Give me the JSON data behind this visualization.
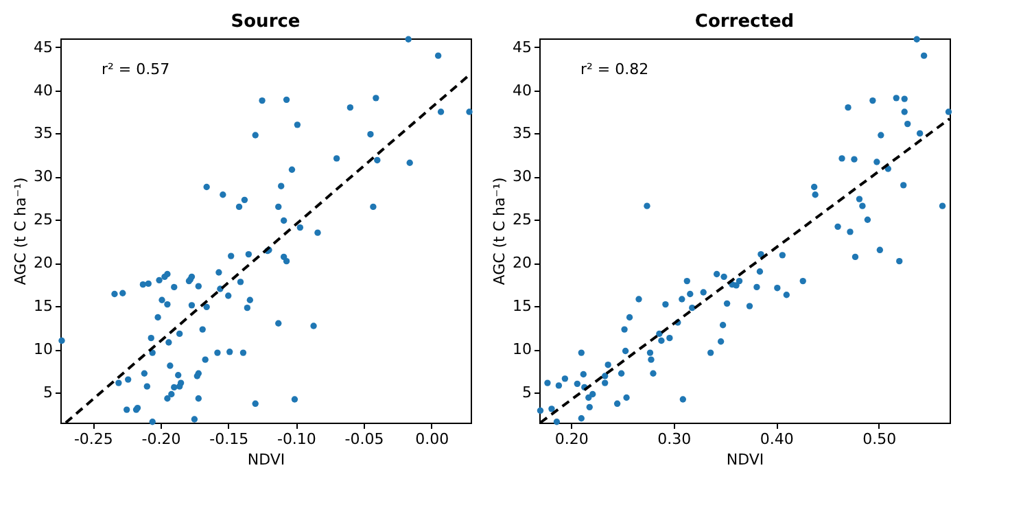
{
  "chart_data": [
    {
      "type": "scatter",
      "title": "Source",
      "xlabel": "NDVI",
      "ylabel": "AGC (t C ha⁻¹)",
      "xlim": [
        -0.274,
        0.029
      ],
      "ylim": [
        1.5,
        46
      ],
      "xticks": [
        {
          "value": -0.25,
          "label": "-0.25"
        },
        {
          "value": -0.2,
          "label": "-0.20"
        },
        {
          "value": -0.15,
          "label": "-0.15"
        },
        {
          "value": -0.1,
          "label": "-0.10"
        },
        {
          "value": -0.05,
          "label": "-0.05"
        },
        {
          "value": 0,
          "label": "0.00"
        }
      ],
      "yticks": [
        5,
        10,
        15,
        20,
        25,
        30,
        35,
        40,
        45
      ],
      "annotations": [
        "r² = 0.57"
      ],
      "grid": false,
      "series": [
        {
          "color": "#1f77b4",
          "marker": "circle",
          "x": [
            -0.273,
            -0.125,
            -0.13,
            -0.166,
            -0.154,
            -0.142,
            -0.138,
            -0.135,
            -0.148,
            -0.121,
            -0.157,
            -0.141,
            -0.134,
            -0.136,
            -0.15,
            -0.156,
            -0.166,
            -0.169,
            -0.167,
            -0.158,
            -0.149,
            -0.139,
            -0.13,
            -0.175,
            -0.172,
            -0.172,
            -0.173,
            -0.177,
            -0.177,
            -0.178,
            -0.172,
            -0.179,
            -0.19,
            -0.195,
            -0.197,
            -0.201,
            -0.199,
            -0.195,
            -0.202,
            -0.186,
            -0.194,
            -0.207,
            -0.206,
            -0.193,
            -0.187,
            -0.185,
            -0.186,
            -0.19,
            -0.192,
            -0.195,
            -0.212,
            -0.21,
            -0.206,
            -0.218,
            -0.217,
            -0.225,
            -0.224,
            -0.231,
            -0.234,
            -0.228,
            -0.213,
            -0.209,
            -0.017,
            0.005,
            0.007,
            0.028,
            -0.107,
            -0.099,
            -0.06,
            -0.041,
            -0.045,
            -0.04,
            -0.016,
            -0.07,
            -0.103,
            -0.111,
            -0.113,
            -0.043,
            -0.109,
            -0.097,
            -0.084,
            -0.12,
            -0.109,
            -0.107,
            -0.113,
            -0.087,
            -0.101
          ],
          "values": [
            11.0,
            38.8,
            34.8,
            28.8,
            27.9,
            26.5,
            27.3,
            21.0,
            20.8,
            21.4,
            18.9,
            17.8,
            15.7,
            14.8,
            16.2,
            17.0,
            14.9,
            12.3,
            8.8,
            9.6,
            9.7,
            9.6,
            3.7,
            1.9,
            4.3,
            7.2,
            6.9,
            15.1,
            18.4,
            18.1,
            17.3,
            17.9,
            17.2,
            18.7,
            18.4,
            18.0,
            15.7,
            15.2,
            13.7,
            11.8,
            10.8,
            11.3,
            9.6,
            8.1,
            7.0,
            6.1,
            5.7,
            5.6,
            4.8,
            4.3,
            7.2,
            5.7,
            1.6,
            3.0,
            3.2,
            3.0,
            6.5,
            6.1,
            16.4,
            16.5,
            17.5,
            17.6,
            45.9,
            44.0,
            37.5,
            37.5,
            38.9,
            36.0,
            38.0,
            39.1,
            34.9,
            31.9,
            31.6,
            32.1,
            30.8,
            28.9,
            26.5,
            26.5,
            24.9,
            24.1,
            23.5,
            21.5,
            20.7,
            20.2,
            13.0,
            12.7,
            4.2
          ]
        },
        {
          "type": "line",
          "color": "#000000",
          "line_style": "dashed",
          "x": [
            -0.27,
            0.029
          ],
          "values": [
            1.5,
            41.9
          ]
        }
      ]
    },
    {
      "type": "scatter",
      "title": "Corrected",
      "xlabel": "NDVI",
      "ylabel": "AGC (t C ha⁻¹)",
      "xlim": [
        0.169,
        0.569
      ],
      "ylim": [
        1.5,
        46
      ],
      "xticks": [
        {
          "value": 0.2,
          "label": "0.20"
        },
        {
          "value": 0.3,
          "label": "0.30"
        },
        {
          "value": 0.4,
          "label": "0.40"
        },
        {
          "value": 0.5,
          "label": "0.50"
        }
      ],
      "yticks": [
        5,
        10,
        15,
        20,
        25,
        30,
        35,
        40,
        45
      ],
      "annotations": [
        "r² = 0.82"
      ],
      "grid": false,
      "series": [
        {
          "color": "#1f77b4",
          "marker": "circle",
          "x": [
            0.17,
            0.181,
            0.186,
            0.177,
            0.188,
            0.194,
            0.206,
            0.21,
            0.212,
            0.213,
            0.217,
            0.218,
            0.221,
            0.21,
            0.233,
            0.233,
            0.236,
            0.249,
            0.245,
            0.254,
            0.253,
            0.252,
            0.257,
            0.266,
            0.274,
            0.277,
            0.278,
            0.28,
            0.286,
            0.288,
            0.292,
            0.296,
            0.304,
            0.308,
            0.309,
            0.313,
            0.316,
            0.318,
            0.329,
            0.336,
            0.342,
            0.349,
            0.346,
            0.348,
            0.352,
            0.357,
            0.361,
            0.364,
            0.374,
            0.381,
            0.384,
            0.385,
            0.401,
            0.406,
            0.41,
            0.426,
            0.437,
            0.438,
            0.46,
            0.464,
            0.47,
            0.472,
            0.476,
            0.477,
            0.481,
            0.484,
            0.489,
            0.494,
            0.498,
            0.501,
            0.502,
            0.509,
            0.517,
            0.52,
            0.524,
            0.525,
            0.525,
            0.528,
            0.537,
            0.544,
            0.54,
            0.562,
            0.568
          ],
          "values": [
            2.9,
            3.1,
            1.6,
            6.1,
            5.8,
            6.6,
            6.0,
            9.6,
            7.1,
            5.6,
            4.4,
            3.3,
            4.8,
            2.0,
            6.1,
            6.9,
            8.2,
            7.2,
            3.7,
            4.4,
            9.8,
            12.3,
            13.7,
            15.8,
            26.6,
            9.6,
            8.8,
            7.2,
            11.8,
            11.0,
            15.2,
            11.3,
            13.1,
            15.8,
            4.2,
            17.9,
            16.4,
            14.8,
            16.6,
            9.6,
            18.7,
            18.4,
            10.9,
            12.8,
            15.3,
            17.5,
            17.4,
            17.9,
            15.0,
            17.2,
            19.0,
            21.0,
            17.1,
            20.9,
            16.3,
            17.9,
            28.8,
            27.9,
            24.2,
            32.1,
            38.0,
            23.6,
            32.0,
            20.7,
            27.4,
            26.6,
            25.0,
            38.8,
            31.7,
            21.5,
            34.8,
            30.9,
            39.1,
            20.2,
            29.0,
            39.0,
            37.5,
            36.1,
            45.9,
            44.0,
            35.0,
            26.6,
            37.5
          ]
        },
        {
          "type": "line",
          "color": "#000000",
          "line_style": "dashed",
          "x": [
            0.17,
            0.569
          ],
          "values": [
            1.5,
            36.7
          ]
        }
      ]
    }
  ]
}
